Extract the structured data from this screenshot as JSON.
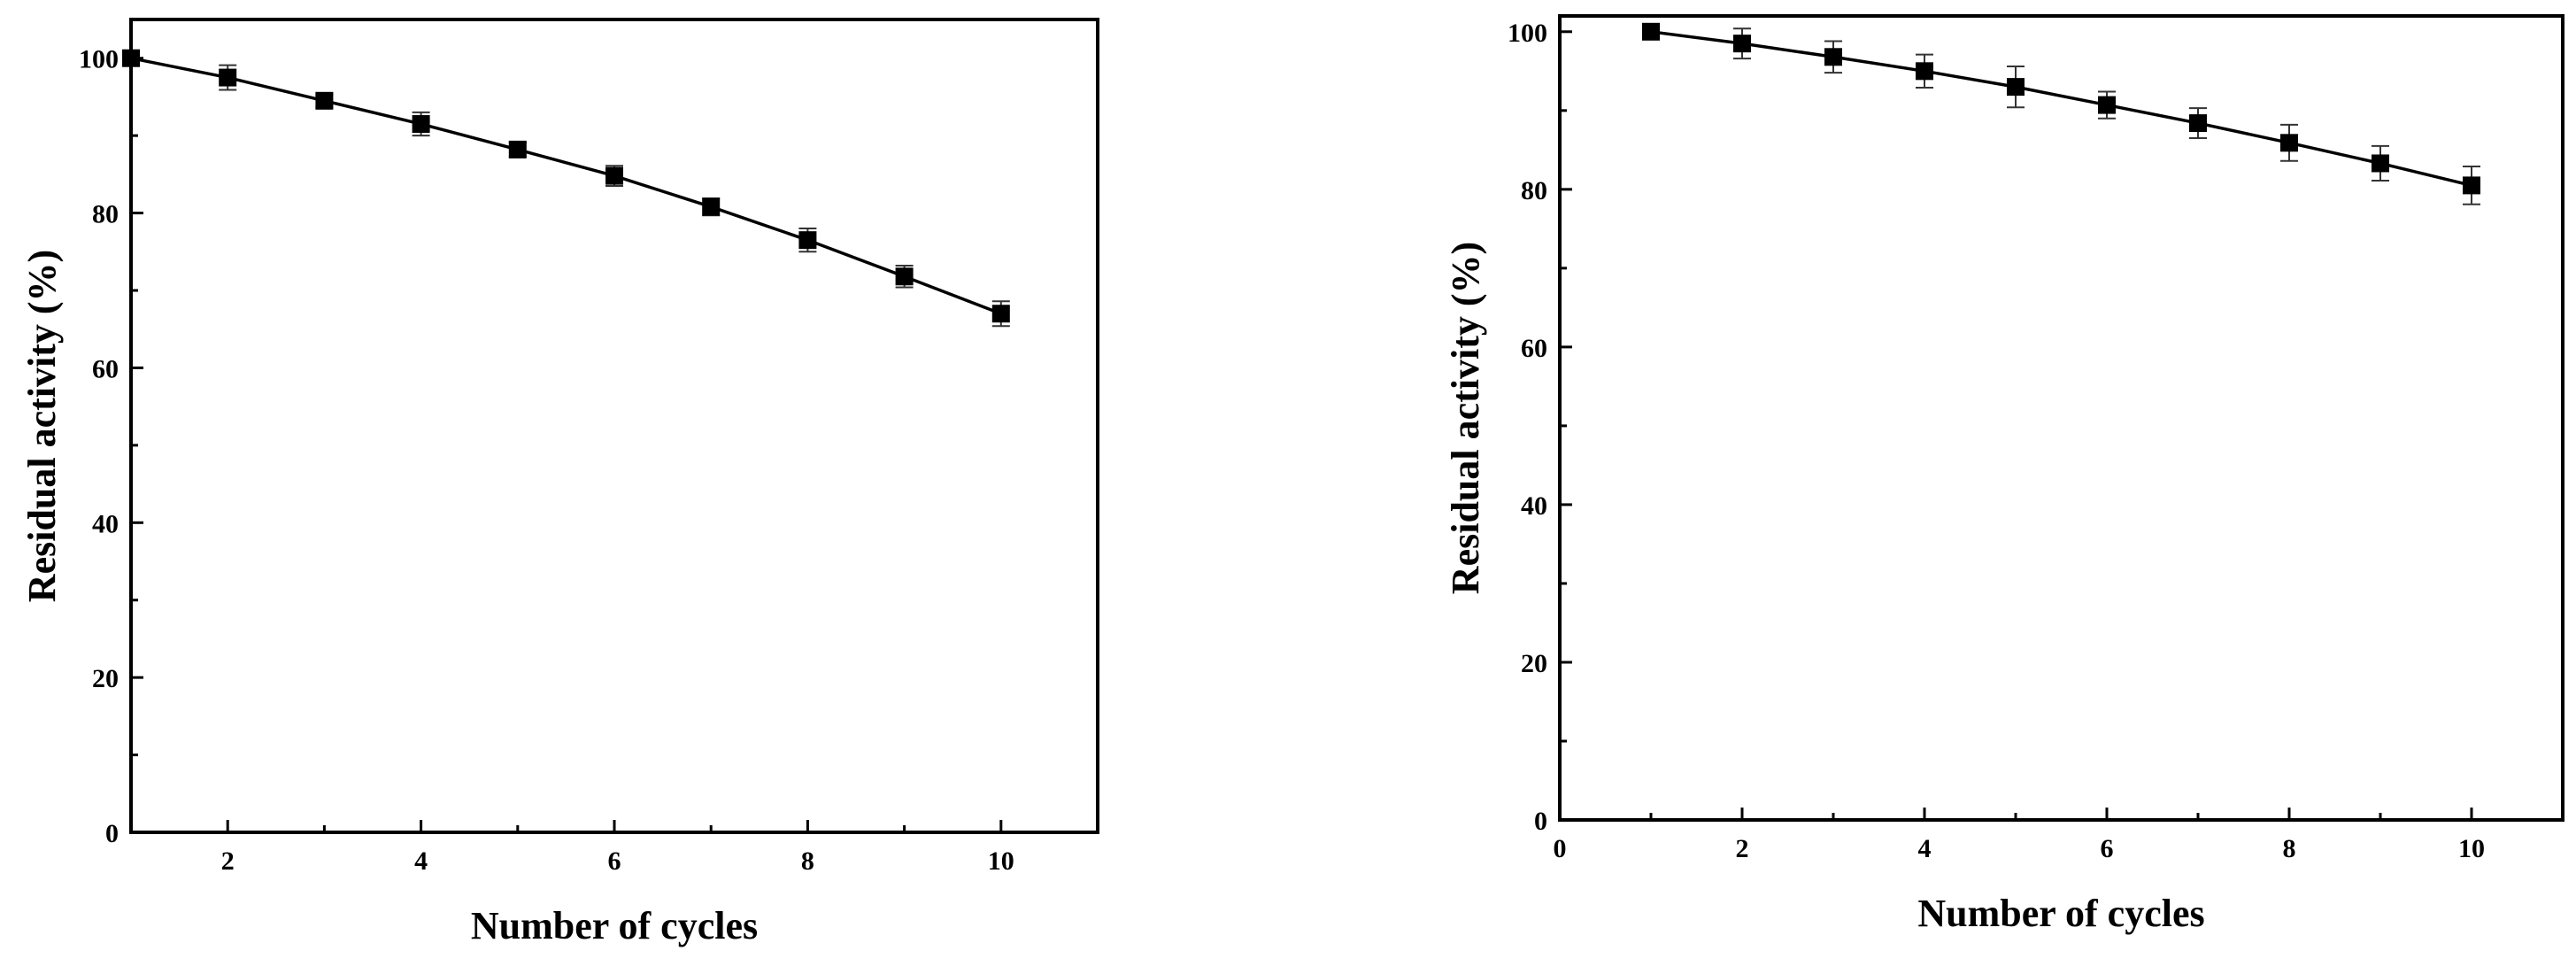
{
  "chart_data": [
    {
      "type": "line",
      "title": "",
      "xlabel": "Number of cycles",
      "ylabel": "Residual activity (%)",
      "xlim": [
        1,
        11
      ],
      "ylim": [
        0,
        105
      ],
      "xticks": [
        2,
        4,
        6,
        8,
        10
      ],
      "xtick_labels": [
        "2",
        "4",
        "6",
        "8",
        "10"
      ],
      "yticks": [
        0,
        20,
        40,
        60,
        80,
        100
      ],
      "ytick_labels": [
        "0",
        "20",
        "40",
        "60",
        "80",
        "100"
      ],
      "grid": false,
      "marker": "square",
      "color": "#000000",
      "series": [
        {
          "x": [
            1,
            2,
            3,
            4,
            5,
            6,
            7,
            8,
            9,
            10
          ],
          "values": [
            100,
            97.5,
            94.5,
            91.5,
            88.2,
            84.8,
            80.8,
            76.5,
            71.8,
            67.0
          ],
          "errors": [
            0.5,
            1.6,
            0.8,
            1.5,
            0.9,
            1.3,
            1.1,
            1.5,
            1.4,
            1.6
          ]
        }
      ]
    },
    {
      "type": "line",
      "title": "",
      "xlabel": "Number of cycles",
      "ylabel": "Residual activity (%)",
      "xlim": [
        0,
        11
      ],
      "ylim": [
        0,
        102
      ],
      "xticks": [
        0,
        2,
        4,
        6,
        8,
        10
      ],
      "xtick_labels": [
        "0",
        "2",
        "4",
        "6",
        "8",
        "10"
      ],
      "yticks": [
        0,
        20,
        40,
        60,
        80,
        100
      ],
      "ytick_labels": [
        "0",
        "20",
        "40",
        "60",
        "80",
        "100"
      ],
      "grid": false,
      "marker": "square",
      "color": "#000000",
      "series": [
        {
          "x": [
            1,
            2,
            3,
            4,
            5,
            6,
            7,
            8,
            9,
            10
          ],
          "values": [
            100,
            98.5,
            96.8,
            95.0,
            93.0,
            90.7,
            88.4,
            85.9,
            83.3,
            80.5
          ],
          "errors": [
            0.3,
            1.9,
            2.0,
            2.1,
            2.6,
            1.7,
            1.9,
            2.3,
            2.2,
            2.4
          ]
        }
      ]
    }
  ]
}
